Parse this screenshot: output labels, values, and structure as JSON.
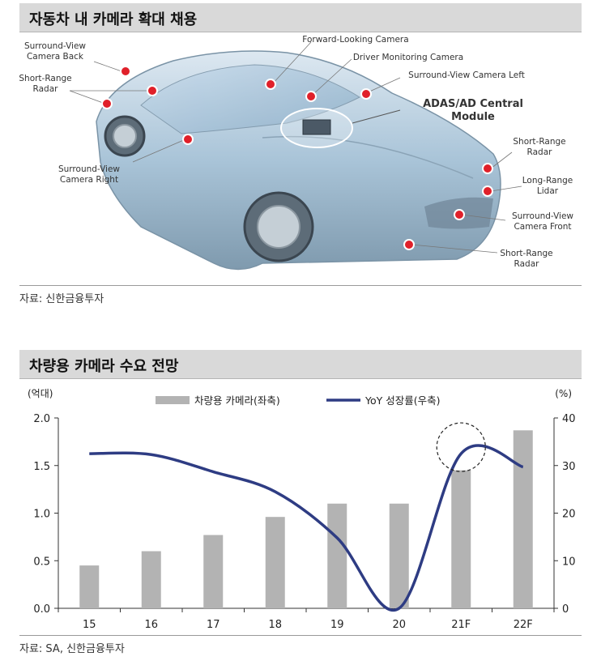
{
  "figure1": {
    "title": "자동차 내 카메라 확대 채용",
    "source": "자료: 신한금융투자",
    "labels": {
      "surround_back": [
        "Surround-View",
        "Camera Back"
      ],
      "short_range_left": [
        "Short-Range",
        "Radar"
      ],
      "forward_camera": "Forward-Looking Camera",
      "driver_monitoring": "Driver Monitoring Camera",
      "surround_left": "Surround-View Camera Left",
      "adas_module": [
        "ADAS/AD Central",
        "Module"
      ],
      "surround_right": [
        "Surround-View",
        "Camera Right"
      ],
      "short_range_right": [
        "Short-Range",
        "Radar"
      ],
      "long_range": [
        "Long-Range",
        "Lidar"
      ],
      "surround_front": [
        "Surround-View",
        "Camera Front"
      ],
      "short_range_front": [
        "Short-Range",
        "Radar"
      ]
    },
    "colors": {
      "sensor_dot": "#e0202a",
      "car_body": "#a9c4d8"
    }
  },
  "figure2": {
    "title": "차량용 카메라 수요 전망",
    "source": "자료: SA, 신한금융투자",
    "chart_data": {
      "type": "bar",
      "categories": [
        "15",
        "16",
        "17",
        "18",
        "19",
        "20",
        "21F",
        "22F"
      ],
      "series": [
        {
          "name": "차량용 카메라(좌축)",
          "type": "bar",
          "axis": "left",
          "color": "#b3b3b3",
          "values": [
            0.45,
            0.6,
            0.77,
            0.96,
            1.1,
            1.1,
            1.45,
            1.87
          ]
        },
        {
          "name": "YoY 성장률(우축)",
          "type": "line",
          "axis": "right",
          "color": "#2e3c83",
          "values": [
            32.5,
            32.3,
            28.7,
            24.5,
            14.8,
            0,
            32.5,
            29.7
          ]
        }
      ],
      "y_left": {
        "label": "(억대)",
        "range": [
          0,
          2
        ],
        "ticks": [
          "0.0",
          "0.5",
          "1.0",
          "1.5",
          "2.0"
        ]
      },
      "y_right": {
        "label": "(%)",
        "range": [
          0,
          40
        ],
        "ticks": [
          "0",
          "10",
          "20",
          "30",
          "40"
        ]
      },
      "legend_position": "top-center",
      "annotation": {
        "type": "dashed-circle",
        "category": "21F"
      }
    }
  }
}
